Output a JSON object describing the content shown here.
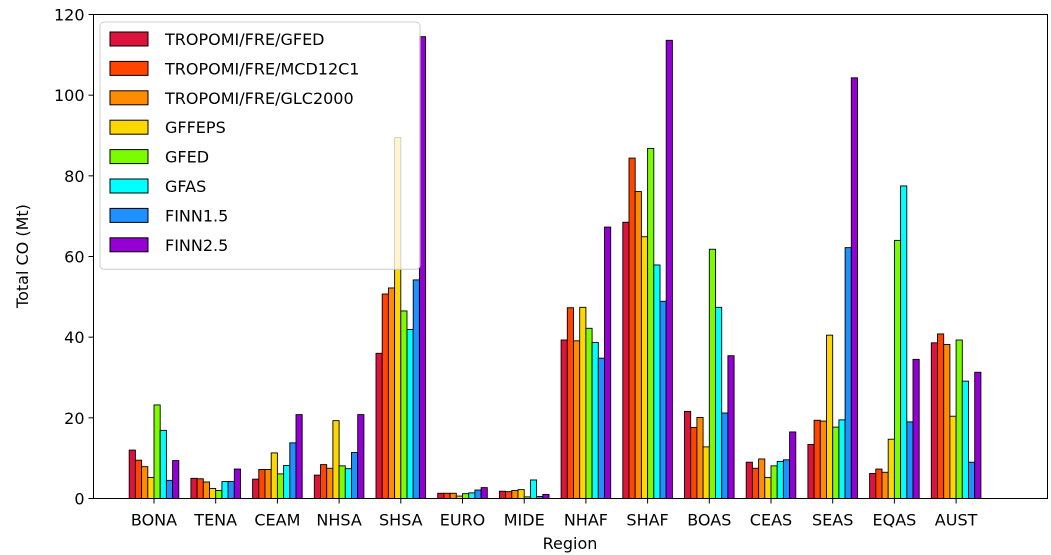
{
  "chart_data": {
    "type": "bar",
    "xlabel": "Region",
    "ylabel": "Total CO (Mt)",
    "ylim": [
      0,
      120
    ],
    "yticks": [
      0,
      20,
      40,
      60,
      80,
      100,
      120
    ],
    "grid": false,
    "legend_position": "top-left",
    "categories": [
      "BONA",
      "TENA",
      "CEAM",
      "NHSA",
      "SHSA",
      "EURO",
      "MIDE",
      "NHAF",
      "SHAF",
      "BOAS",
      "CEAS",
      "SEAS",
      "EQAS",
      "AUST"
    ],
    "series": [
      {
        "name": "TROPOMI/FRE/GFED",
        "color": "#DC143C",
        "values": [
          12.0,
          5.0,
          4.8,
          5.8,
          36.0,
          1.3,
          1.8,
          39.3,
          68.5,
          21.6,
          9.0,
          13.4,
          6.2,
          38.6
        ]
      },
      {
        "name": "TROPOMI/FRE/MCD12C1",
        "color": "#FF4500",
        "values": [
          9.5,
          4.9,
          7.2,
          8.4,
          50.7,
          1.3,
          1.7,
          47.3,
          84.4,
          17.6,
          7.5,
          19.4,
          7.3,
          40.8
        ]
      },
      {
        "name": "TROPOMI/FRE/GLC2000",
        "color": "#FF8C00",
        "values": [
          7.9,
          4.1,
          7.2,
          7.5,
          52.2,
          1.3,
          2.0,
          39.1,
          76.1,
          20.1,
          9.8,
          19.2,
          6.5,
          38.2
        ]
      },
      {
        "name": "GFFEPS",
        "color": "#FFD700",
        "values": [
          5.2,
          2.5,
          11.3,
          19.3,
          89.5,
          0.6,
          2.2,
          47.4,
          64.9,
          12.8,
          5.2,
          40.5,
          14.7,
          20.4
        ]
      },
      {
        "name": "GFED",
        "color": "#7CFC00",
        "values": [
          23.2,
          2.0,
          6.1,
          8.1,
          46.5,
          1.2,
          0.4,
          42.2,
          86.8,
          61.8,
          8.1,
          17.7,
          64.0,
          39.3
        ]
      },
      {
        "name": "GFAS",
        "color": "#00FFFF",
        "values": [
          16.9,
          4.2,
          8.2,
          7.4,
          41.9,
          1.4,
          4.6,
          38.7,
          57.9,
          47.4,
          9.2,
          19.5,
          77.5,
          29.1
        ]
      },
      {
        "name": "FINN1.5",
        "color": "#1E90FF",
        "values": [
          4.5,
          4.2,
          13.8,
          11.4,
          54.2,
          2.1,
          0.5,
          34.8,
          48.9,
          21.2,
          9.6,
          62.2,
          19.0,
          9.0
        ]
      },
      {
        "name": "FINN2.5",
        "color": "#9400D3",
        "values": [
          9.4,
          7.3,
          20.8,
          20.8,
          114.5,
          2.7,
          1.0,
          67.3,
          113.6,
          35.4,
          16.5,
          104.3,
          34.5,
          31.3
        ]
      }
    ]
  }
}
